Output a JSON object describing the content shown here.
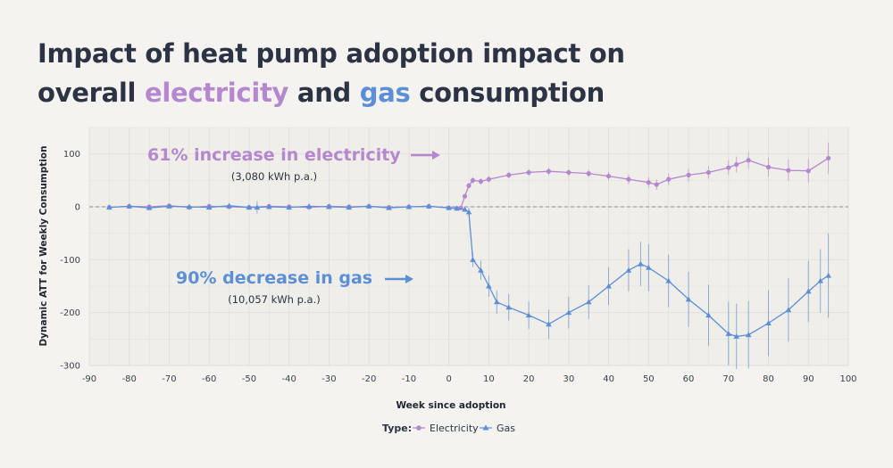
{
  "title": {
    "line1": "Impact of heat pump adoption impact on",
    "line2_pre": "overall ",
    "line2_elec": "electricity",
    "line2_mid": " and ",
    "line2_gas": "gas",
    "line2_post": " consumption"
  },
  "annotations": {
    "electricity_main": "61% increase in electricity",
    "electricity_sub": "(3,080 kWh p.a.)",
    "gas_main": "90% decrease in gas",
    "gas_sub": "(10,057 kWh p.a.)"
  },
  "legend": {
    "title": "Type:",
    "electricity": "Electricity",
    "gas": "Gas"
  },
  "colors": {
    "electricity": "#b487cf",
    "gas": "#5d8fd6",
    "text": "#2b3344",
    "background": "#f4f3ef"
  },
  "chart_data": {
    "type": "line",
    "xlabel": "Week since adoption",
    "ylabel": "Dynamic ATT for Weekly Consumption",
    "xlim": [
      -90,
      100
    ],
    "ylim": [
      -300,
      150
    ],
    "xticks": [
      -90,
      -80,
      -70,
      -60,
      -50,
      -40,
      -30,
      -20,
      -10,
      0,
      10,
      20,
      30,
      40,
      50,
      60,
      70,
      80,
      90,
      100
    ],
    "yticks": [
      100,
      0,
      -100,
      -200,
      -300
    ],
    "reference_line_y": 0,
    "series": [
      {
        "name": "Electricity",
        "marker": "circle",
        "x": [
          -85,
          -80,
          -75,
          -70,
          -65,
          -60,
          -55,
          -50,
          -45,
          -40,
          -35,
          -30,
          -25,
          -20,
          -15,
          -10,
          -5,
          0,
          2,
          3,
          4,
          5,
          6,
          8,
          10,
          15,
          20,
          25,
          30,
          35,
          40,
          45,
          50,
          52,
          55,
          60,
          65,
          70,
          72,
          75,
          80,
          85,
          90,
          95
        ],
        "y": [
          -1,
          1,
          0,
          2,
          -1,
          1,
          0,
          -1,
          1,
          0,
          -1,
          1,
          0,
          1,
          -1,
          0,
          1,
          -2,
          -3,
          -2,
          20,
          40,
          50,
          48,
          52,
          60,
          65,
          67,
          65,
          63,
          58,
          52,
          46,
          42,
          52,
          60,
          65,
          74,
          80,
          88,
          75,
          69,
          68,
          92
        ],
        "error": [
          3,
          3,
          3,
          3,
          3,
          3,
          3,
          4,
          3,
          3,
          3,
          3,
          3,
          3,
          3,
          3,
          3,
          3,
          3,
          3,
          4,
          5,
          6,
          6,
          6,
          6,
          6,
          7,
          7,
          7,
          8,
          9,
          10,
          10,
          11,
          12,
          12,
          14,
          15,
          16,
          18,
          20,
          22,
          30
        ]
      },
      {
        "name": "Gas",
        "marker": "triangle",
        "x": [
          -85,
          -80,
          -75,
          -70,
          -65,
          -60,
          -55,
          -50,
          -48,
          -45,
          -40,
          -35,
          -30,
          -25,
          -20,
          -15,
          -10,
          -5,
          0,
          2,
          4,
          5,
          6,
          8,
          10,
          12,
          15,
          20,
          25,
          30,
          35,
          40,
          45,
          48,
          50,
          55,
          60,
          65,
          70,
          72,
          75,
          80,
          85,
          90,
          93,
          95
        ],
        "y": [
          -1,
          1,
          -2,
          1,
          0,
          -1,
          2,
          -1,
          -1,
          0,
          -1,
          1,
          0,
          -1,
          1,
          -2,
          0,
          1,
          -2,
          -3,
          -5,
          -10,
          -100,
          -120,
          -150,
          -180,
          -190,
          -205,
          -222,
          -200,
          -180,
          -150,
          -120,
          -108,
          -115,
          -140,
          -175,
          -205,
          -240,
          -245,
          -242,
          -220,
          -195,
          -160,
          -140,
          -130
        ],
        "error": [
          3,
          3,
          3,
          3,
          3,
          3,
          3,
          3,
          12,
          3,
          3,
          3,
          3,
          3,
          3,
          3,
          3,
          3,
          3,
          3,
          4,
          8,
          14,
          18,
          20,
          22,
          25,
          26,
          28,
          30,
          32,
          36,
          40,
          42,
          45,
          50,
          52,
          58,
          60,
          62,
          64,
          62,
          60,
          58,
          60,
          80
        ]
      }
    ]
  }
}
